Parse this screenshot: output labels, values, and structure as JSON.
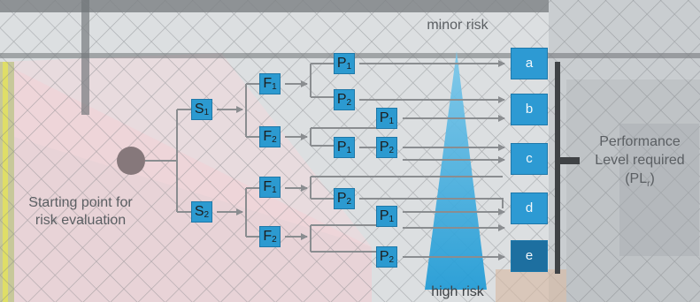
{
  "labels": {
    "minor_risk": "minor risk",
    "high_risk": "high risk",
    "start_line1": "Starting point for",
    "start_line2": "risk evaluation",
    "pl_line1": "Performance",
    "pl_line2": "Level required",
    "pl_line3": "(PL",
    "pl_sub": "r",
    "pl_close": ")"
  },
  "nodes": {
    "s1": {
      "base": "S",
      "sub": "1"
    },
    "s2": {
      "base": "S",
      "sub": "2"
    },
    "f1_top": {
      "base": "F",
      "sub": "1"
    },
    "f2_top": {
      "base": "F",
      "sub": "2"
    },
    "f1_bottom": {
      "base": "F",
      "sub": "1"
    },
    "f2_bottom": {
      "base": "F",
      "sub": "2"
    },
    "p1_a": {
      "base": "P",
      "sub": "1"
    },
    "p2_b": {
      "base": "P",
      "sub": "2"
    },
    "p1_b": {
      "base": "P",
      "sub": "1"
    },
    "p1_c": {
      "base": "P",
      "sub": "1"
    },
    "p2_c": {
      "base": "P",
      "sub": "2"
    },
    "p2_d": {
      "base": "P",
      "sub": "2"
    },
    "p1_d": {
      "base": "P",
      "sub": "1"
    },
    "p2_e": {
      "base": "P",
      "sub": "2"
    }
  },
  "levels": [
    "a",
    "b",
    "c",
    "d",
    "e"
  ],
  "colors": {
    "box": "#2c9ad0",
    "triangle": "#29a6dc",
    "line": "#8a8d90",
    "bracket": "#3f4245"
  }
}
